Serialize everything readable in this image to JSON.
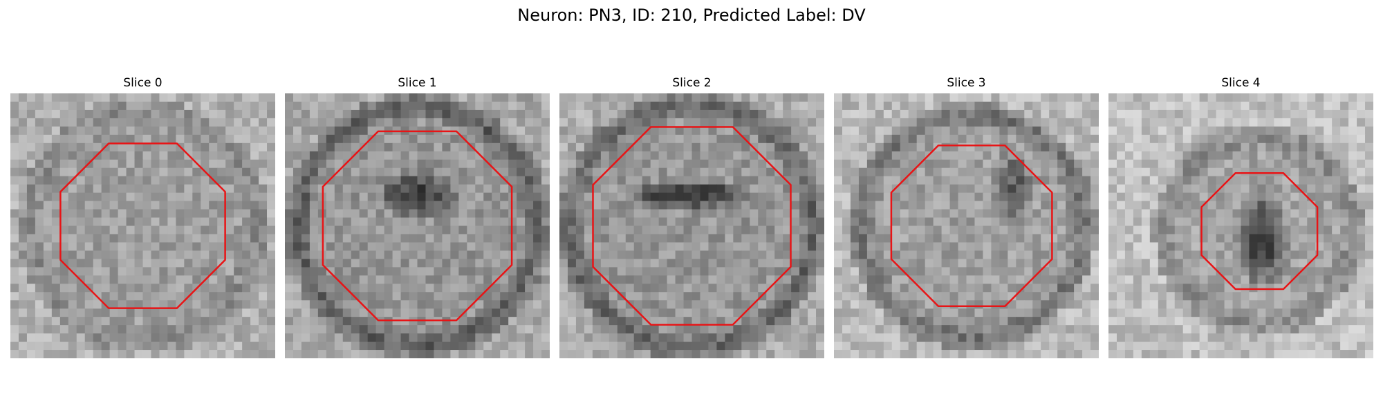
{
  "figure": {
    "title": "Neuron: PN3, ID: 210, Predicted Label: DV",
    "contour_color": "#e81416",
    "panels": [
      {
        "title": "Slice 0",
        "mean_gray": 158,
        "dark_center": 0,
        "dark_ring": 0.3,
        "bright_bg": 0.6,
        "contour_scale": 0.9
      },
      {
        "title": "Slice 1",
        "mean_gray": 150,
        "dark_center": 0.8,
        "dark_ring": 0.9,
        "bright_bg": 0.6,
        "contour_scale": 0.98
      },
      {
        "title": "Slice 2",
        "mean_gray": 150,
        "dark_center": 1.0,
        "dark_ring": 0.75,
        "bright_bg": 0.75,
        "contour_scale": 1.0
      },
      {
        "title": "Slice 3",
        "mean_gray": 160,
        "dark_center": 0.6,
        "dark_ring": 0.7,
        "bright_bg": 0.85,
        "contour_scale": 0.9
      },
      {
        "title": "Slice 4",
        "mean_gray": 165,
        "dark_center": 0.95,
        "dark_ring": 0.4,
        "bright_bg": 0.9,
        "contour_scale": 0.8
      }
    ]
  }
}
